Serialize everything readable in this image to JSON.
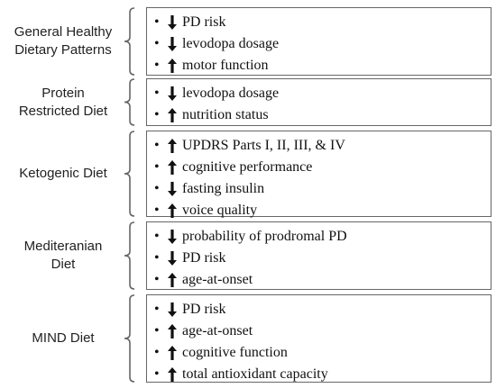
{
  "groups": [
    {
      "label": [
        "General Healthy",
        "Dietary Patterns"
      ],
      "items": [
        {
          "direction": "down",
          "text": "PD risk"
        },
        {
          "direction": "down",
          "text": "levodopa dosage"
        },
        {
          "direction": "up",
          "text": "motor function"
        }
      ]
    },
    {
      "label": [
        "Protein",
        "Restricted Diet"
      ],
      "items": [
        {
          "direction": "down",
          "text": "levodopa dosage"
        },
        {
          "direction": "up",
          "text": "nutrition status"
        }
      ]
    },
    {
      "label": [
        "Ketogenic Diet"
      ],
      "items": [
        {
          "direction": "up",
          "text": "UPDRS Parts I, II, III, & IV"
        },
        {
          "direction": "up",
          "text": "cognitive performance"
        },
        {
          "direction": "down",
          "text": "fasting insulin"
        },
        {
          "direction": "up",
          "text": "voice quality"
        }
      ]
    },
    {
      "label": [
        "Mediteranian",
        "Diet"
      ],
      "items": [
        {
          "direction": "down",
          "text": "probability of prodromal PD"
        },
        {
          "direction": "down",
          "text": "PD risk"
        },
        {
          "direction": "up",
          "text": "age-at-onset"
        }
      ]
    },
    {
      "label": [
        "MIND Diet"
      ],
      "items": [
        {
          "direction": "down",
          "text": "PD risk"
        },
        {
          "direction": "up",
          "text": "age-at-onset"
        },
        {
          "direction": "up",
          "text": "cognitive function"
        },
        {
          "direction": "up",
          "text": "total antioxidant capacity"
        }
      ]
    }
  ],
  "colors": {
    "box_border": "#666666",
    "brace": "#666666",
    "text": "#111111"
  }
}
